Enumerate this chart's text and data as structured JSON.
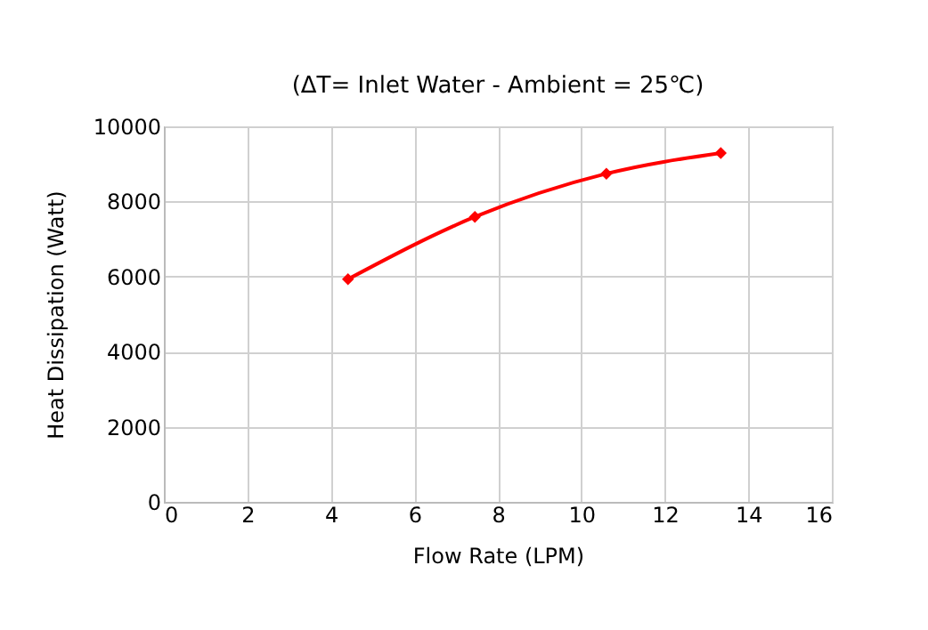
{
  "chart_data": {
    "type": "line",
    "subtitle": "(ΔT= Inlet Water - Ambient = 25℃)",
    "xlabel": "Flow Rate (LPM)",
    "ylabel": "Heat Dissipation (Watt)",
    "x": [
      4.41,
      7.45,
      10.6,
      13.34
    ],
    "series": [
      {
        "color": "#ff0000",
        "values": [
          5930,
          7590,
          8740,
          9290
        ]
      }
    ],
    "xlim": [
      0,
      16
    ],
    "xticks": [
      0,
      2,
      4,
      6,
      8,
      10,
      12,
      14,
      16
    ],
    "ylim": [
      0,
      10000
    ],
    "yticks": [
      0,
      2000,
      4000,
      6000,
      8000,
      10000
    ],
    "grid": true,
    "marker": "diamond",
    "line_style": "solid",
    "legend": false
  }
}
